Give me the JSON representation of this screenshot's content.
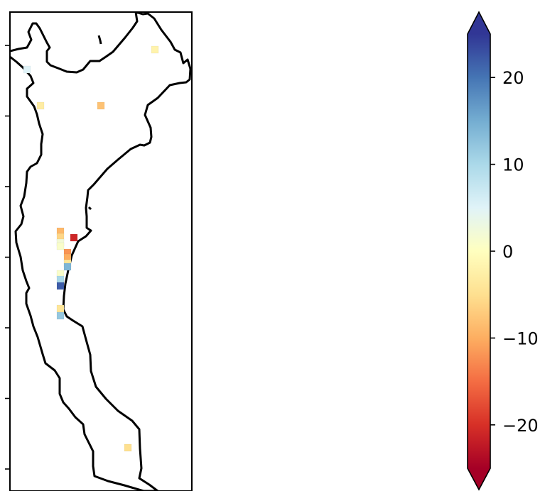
{
  "chart_data": {
    "type": "heatmap",
    "title": "",
    "xlabel": "",
    "ylabel": "",
    "map": {
      "y_tick_count": 7,
      "tick_labels_shown": false
    },
    "cells": [
      {
        "value": 5
      },
      {
        "value": -3
      },
      {
        "value": -8
      },
      {
        "value": -2
      },
      {
        "value": -9
      },
      {
        "value": -6
      },
      {
        "value": 2
      },
      {
        "value": -21
      },
      {
        "value": 1
      },
      {
        "value": -12
      },
      {
        "value": -10
      },
      {
        "value": -4
      },
      {
        "value": 14
      },
      {
        "value": 1
      },
      {
        "value": 10
      },
      {
        "value": 22
      },
      {
        "value": -4
      },
      {
        "value": 12
      },
      {
        "value": -5
      }
    ],
    "colorbar": {
      "colormap": "RdYlBu",
      "vmin": -25,
      "vmax": 25,
      "extend": "both",
      "ticks": [
        -20,
        -10,
        0,
        10,
        20
      ],
      "tick_labels": [
        "−20",
        "−10",
        "0",
        "10",
        "20"
      ]
    }
  }
}
